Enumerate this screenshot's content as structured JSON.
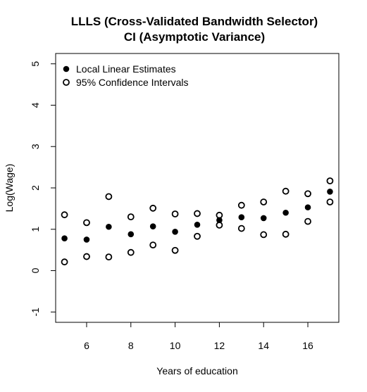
{
  "chart_data": {
    "type": "scatter",
    "title": "LLLS (Cross-Validated Bandwidth Selector)",
    "subtitle": "CI (Asymptotic Variance)",
    "xlabel": "Years of education",
    "ylabel": "Log(Wage)",
    "xlim": [
      4.6,
      17.4
    ],
    "ylim": [
      -1.25,
      5.25
    ],
    "x_ticks": [
      6,
      8,
      10,
      12,
      14,
      16
    ],
    "y_ticks": [
      -1,
      0,
      1,
      2,
      3,
      4,
      5
    ],
    "grid": false,
    "legend_position": "top-left",
    "series": [
      {
        "name": "Local Linear Estimates",
        "marker": "filled-circle",
        "color": "#000000",
        "x": [
          5,
          6,
          7,
          8,
          9,
          10,
          11,
          12,
          13,
          14,
          15,
          16,
          17
        ],
        "y": [
          0.78,
          0.75,
          1.06,
          0.88,
          1.07,
          0.94,
          1.11,
          1.22,
          1.29,
          1.27,
          1.4,
          1.53,
          1.91
        ]
      },
      {
        "name": "95% Confidence Intervals",
        "marker": "open-circle",
        "color": "#000000",
        "x": [
          5,
          5,
          6,
          6,
          7,
          7,
          8,
          8,
          9,
          9,
          10,
          10,
          11,
          11,
          12,
          12,
          13,
          13,
          14,
          14,
          15,
          15,
          16,
          16,
          17,
          17
        ],
        "y": [
          1.35,
          0.21,
          1.16,
          0.34,
          1.79,
          0.33,
          1.3,
          0.44,
          1.51,
          0.62,
          1.37,
          0.49,
          1.38,
          0.83,
          1.34,
          1.1,
          1.58,
          1.02,
          1.66,
          0.87,
          1.92,
          0.88,
          1.86,
          1.19,
          2.17,
          1.66
        ]
      }
    ]
  }
}
